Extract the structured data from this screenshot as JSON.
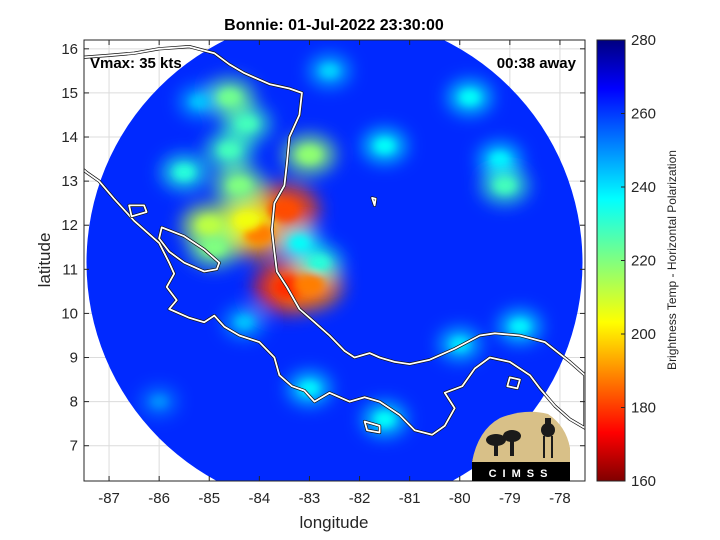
{
  "chart_data": {
    "type": "heatmap",
    "title": "Bonnie: 01-Jul-2022 23:30:00",
    "xlabel": "longitude",
    "ylabel": "latitude",
    "xlim": [
      -87.5,
      -77.5
    ],
    "ylim": [
      6.2,
      16.2
    ],
    "x_ticks": [
      -87,
      -86,
      -85,
      -84,
      -83,
      -82,
      -81,
      -80,
      -79,
      -78
    ],
    "y_ticks": [
      7,
      8,
      9,
      10,
      11,
      12,
      13,
      14,
      15,
      16
    ],
    "grid": true,
    "annotations": {
      "vmax": "Vmax: 35 kts",
      "time_away": "00:38 away"
    },
    "colorbar": {
      "label": "Brightness Temp - Horizontal Polarization",
      "range": [
        160,
        280
      ],
      "ticks": [
        160,
        180,
        200,
        220,
        240,
        260,
        280
      ],
      "colormap": "jet"
    },
    "swath": {
      "center_lon": -82.5,
      "center_lat": 11.15,
      "radius_deg": 4.95,
      "background_tb": 262
    },
    "features": [
      {
        "lon": -83.4,
        "lat": 10.6,
        "tb": 178
      },
      {
        "lon": -83.0,
        "lat": 10.65,
        "tb": 188
      },
      {
        "lon": -84.0,
        "lat": 11.8,
        "tb": 188
      },
      {
        "lon": -83.5,
        "lat": 12.35,
        "tb": 182
      },
      {
        "lon": -84.25,
        "lat": 12.1,
        "tb": 205
      },
      {
        "lon": -85.0,
        "lat": 12.0,
        "tb": 212
      },
      {
        "lon": -84.9,
        "lat": 11.5,
        "tb": 220
      },
      {
        "lon": -84.4,
        "lat": 12.9,
        "tb": 220
      },
      {
        "lon": -84.6,
        "lat": 13.7,
        "tb": 228
      },
      {
        "lon": -84.25,
        "lat": 14.3,
        "tb": 228
      },
      {
        "lon": -84.6,
        "lat": 14.9,
        "tb": 222
      },
      {
        "lon": -83.0,
        "lat": 13.6,
        "tb": 218
      },
      {
        "lon": -82.8,
        "lat": 11.15,
        "tb": 232
      },
      {
        "lon": -83.2,
        "lat": 11.6,
        "tb": 236
      },
      {
        "lon": -85.5,
        "lat": 13.2,
        "tb": 232
      },
      {
        "lon": -81.5,
        "lat": 13.8,
        "tb": 236
      },
      {
        "lon": -79.1,
        "lat": 12.9,
        "tb": 228
      },
      {
        "lon": -79.8,
        "lat": 14.9,
        "tb": 236
      },
      {
        "lon": -79.2,
        "lat": 13.5,
        "tb": 238
      },
      {
        "lon": -78.8,
        "lat": 9.7,
        "tb": 238
      },
      {
        "lon": -80.0,
        "lat": 9.3,
        "tb": 240
      },
      {
        "lon": -83.0,
        "lat": 8.3,
        "tb": 238
      },
      {
        "lon": -81.5,
        "lat": 7.6,
        "tb": 236
      },
      {
        "lon": -84.3,
        "lat": 9.8,
        "tb": 244
      },
      {
        "lon": -82.6,
        "lat": 15.5,
        "tb": 242
      },
      {
        "lon": -85.2,
        "lat": 14.8,
        "tb": 244
      },
      {
        "lon": -86.0,
        "lat": 8.0,
        "tb": 250
      }
    ],
    "land_regions": [
      {
        "name": "Central America",
        "outline": [
          [
            -87.6,
            13.35
          ],
          [
            -87.45,
            13.2
          ],
          [
            -87.2,
            13.0
          ],
          [
            -86.9,
            12.6
          ],
          [
            -86.5,
            12.1
          ],
          [
            -86.0,
            11.6
          ],
          [
            -85.8,
            11.15
          ],
          [
            -85.7,
            10.9
          ],
          [
            -85.85,
            10.6
          ],
          [
            -85.65,
            10.3
          ],
          [
            -85.8,
            10.1
          ],
          [
            -85.4,
            9.9
          ],
          [
            -85.1,
            9.8
          ],
          [
            -84.9,
            9.95
          ],
          [
            -84.7,
            9.7
          ],
          [
            -84.4,
            9.5
          ],
          [
            -84.0,
            9.35
          ],
          [
            -83.7,
            9.0
          ],
          [
            -83.6,
            8.6
          ],
          [
            -83.35,
            8.35
          ],
          [
            -83.1,
            8.25
          ],
          [
            -82.9,
            8.0
          ],
          [
            -82.6,
            8.2
          ],
          [
            -82.2,
            8.0
          ],
          [
            -81.9,
            8.1
          ],
          [
            -81.6,
            8.0
          ],
          [
            -81.2,
            7.7
          ],
          [
            -80.9,
            7.35
          ],
          [
            -80.55,
            7.25
          ],
          [
            -80.3,
            7.45
          ],
          [
            -80.1,
            7.85
          ],
          [
            -80.3,
            8.2
          ],
          [
            -79.95,
            8.35
          ],
          [
            -79.7,
            8.75
          ],
          [
            -79.4,
            9.0
          ],
          [
            -79.0,
            8.9
          ],
          [
            -78.6,
            8.6
          ],
          [
            -78.4,
            8.3
          ],
          [
            -78.1,
            7.9
          ],
          [
            -77.8,
            7.6
          ],
          [
            -77.5,
            7.4
          ],
          [
            -77.5,
            8.6
          ],
          [
            -77.8,
            8.9
          ],
          [
            -78.3,
            9.35
          ],
          [
            -78.8,
            9.5
          ],
          [
            -79.3,
            9.55
          ],
          [
            -79.6,
            9.5
          ],
          [
            -80.1,
            9.2
          ],
          [
            -80.6,
            8.95
          ],
          [
            -81.0,
            8.85
          ],
          [
            -81.3,
            8.9
          ],
          [
            -81.6,
            9.0
          ],
          [
            -81.8,
            9.1
          ],
          [
            -82.1,
            9.0
          ],
          [
            -82.3,
            9.15
          ],
          [
            -82.6,
            9.5
          ],
          [
            -82.9,
            9.8
          ],
          [
            -83.2,
            10.1
          ],
          [
            -83.45,
            10.6
          ],
          [
            -83.65,
            10.95
          ],
          [
            -83.7,
            11.4
          ],
          [
            -83.75,
            11.9
          ],
          [
            -83.7,
            12.5
          ],
          [
            -83.5,
            12.9
          ],
          [
            -83.45,
            13.4
          ],
          [
            -83.4,
            14.0
          ],
          [
            -83.2,
            14.5
          ],
          [
            -83.15,
            15.0
          ],
          [
            -83.4,
            15.1
          ],
          [
            -83.8,
            15.2
          ],
          [
            -84.1,
            15.35
          ],
          [
            -84.3,
            15.45
          ],
          [
            -84.6,
            15.65
          ],
          [
            -84.9,
            15.9
          ],
          [
            -85.4,
            16.05
          ],
          [
            -86.0,
            16.0
          ],
          [
            -86.5,
            15.9
          ],
          [
            -87.0,
            15.85
          ],
          [
            -87.6,
            15.8
          ]
        ]
      }
    ],
    "lakes": [
      {
        "name": "Lake Nicaragua",
        "outline": [
          [
            -85.95,
            11.95
          ],
          [
            -85.5,
            11.75
          ],
          [
            -85.1,
            11.45
          ],
          [
            -84.8,
            11.15
          ],
          [
            -84.85,
            11.0
          ],
          [
            -85.1,
            10.95
          ],
          [
            -85.5,
            11.15
          ],
          [
            -85.8,
            11.4
          ],
          [
            -86.0,
            11.7
          ]
        ]
      },
      {
        "name": "Lake Managua",
        "outline": [
          [
            -86.6,
            12.45
          ],
          [
            -86.3,
            12.45
          ],
          [
            -86.25,
            12.3
          ],
          [
            -86.55,
            12.2
          ]
        ]
      }
    ],
    "islands": [
      {
        "name": "Isla del Rey",
        "outline": [
          [
            -79.0,
            8.55
          ],
          [
            -78.8,
            8.5
          ],
          [
            -78.85,
            8.3
          ],
          [
            -79.05,
            8.35
          ]
        ]
      },
      {
        "name": "Coiba",
        "outline": [
          [
            -81.9,
            7.55
          ],
          [
            -81.6,
            7.45
          ],
          [
            -81.6,
            7.3
          ],
          [
            -81.85,
            7.35
          ]
        ]
      },
      {
        "name": "San Andres",
        "outline": [
          [
            -81.75,
            12.62
          ],
          [
            -81.68,
            12.6
          ],
          [
            -81.7,
            12.45
          ]
        ]
      }
    ],
    "logo": {
      "text": "CIMSS"
    }
  }
}
